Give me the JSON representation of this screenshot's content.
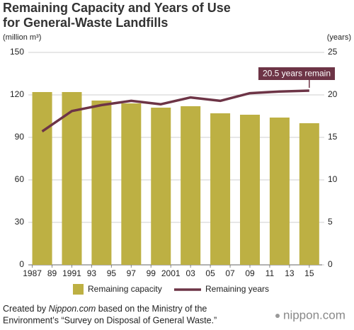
{
  "chart_data": {
    "type": "bar_line",
    "title": [
      "Remaining Capacity and Years of Use",
      "for General-Waste Landfills"
    ],
    "y_label": "(million m³)",
    "y2_label": "(years)",
    "x": [
      1988,
      1991,
      1994,
      1997,
      2000,
      2003,
      2006,
      2009,
      2012,
      2015
    ],
    "xlim": [
      1986.6,
      2016.3
    ],
    "xticks": [
      1987,
      {
        "value": 1989,
        "label": "89"
      },
      1991,
      {
        "value": 1993,
        "label": "93"
      },
      {
        "value": 1995,
        "label": "95"
      },
      {
        "value": 1997,
        "label": "97"
      },
      {
        "value": 1999,
        "label": "99"
      },
      2001,
      {
        "value": 2003,
        "label": "03"
      },
      {
        "value": 2005,
        "label": "05"
      },
      {
        "value": 2007,
        "label": "07"
      },
      {
        "value": 2009,
        "label": "09"
      },
      {
        "value": 2011,
        "label": "11"
      },
      {
        "value": 2013,
        "label": "13"
      },
      {
        "value": 2015,
        "label": "15"
      }
    ],
    "ylim": [
      0,
      150
    ],
    "yticks": [
      0,
      30,
      60,
      90,
      120,
      150
    ],
    "y2lim": [
      0,
      25
    ],
    "y2ticks": [
      0,
      5,
      10,
      15,
      20,
      25
    ],
    "grid": true,
    "series": [
      {
        "name": "Remaining capacity",
        "type": "bar",
        "color": "#bdb043",
        "values": [
          122,
          122,
          116,
          114,
          111,
          112,
          107,
          106,
          104,
          100
        ]
      },
      {
        "name": "Remaining years",
        "type": "line",
        "axis": "y2",
        "color": "#6d3446",
        "values": [
          15.7,
          18.1,
          18.8,
          19.3,
          18.9,
          19.7,
          19.3,
          20.2,
          20.4,
          20.5
        ]
      }
    ],
    "annotation": "20.5 years remain"
  },
  "footer": {
    "prefix": "Created by ",
    "source": "Nippon.com",
    "rest": " based on the Ministry of the",
    "line2": "Environment’s “Survey on Disposal of General Waste.”"
  },
  "logo": "nippon.com"
}
